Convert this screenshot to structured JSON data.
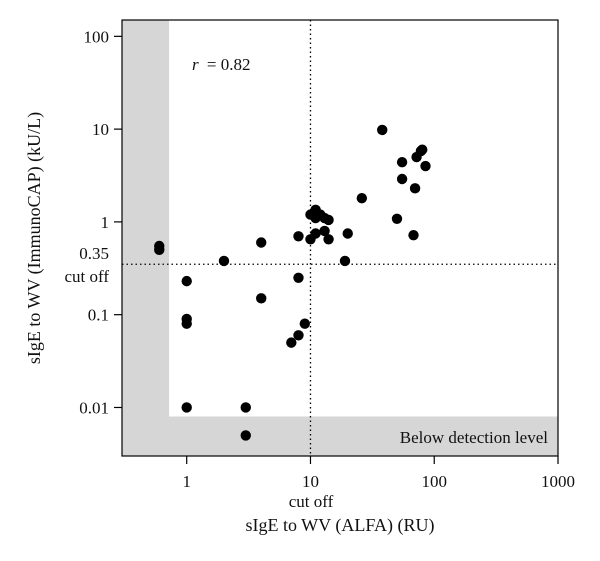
{
  "chart_data": {
    "type": "scatter",
    "xlabel": "sIgE to WV (ALFA) (RU)",
    "ylabel": "sIgE to WV (ImmunoCAP) (kU/L)",
    "x_scale": "log",
    "y_scale": "log",
    "xlim": [
      0.3,
      1000
    ],
    "ylim": [
      0.003,
      150
    ],
    "x_ticks": [
      {
        "value": 1,
        "label": "1"
      },
      {
        "value": 10,
        "label": "10"
      },
      {
        "value": 100,
        "label": "100"
      },
      {
        "value": 1000,
        "label": "1000"
      }
    ],
    "y_ticks": [
      {
        "value": 0.01,
        "label": "0.01"
      },
      {
        "value": 0.1,
        "label": "0.1"
      },
      {
        "value": 1,
        "label": "1"
      },
      {
        "value": 10,
        "label": "10"
      },
      {
        "value": 100,
        "label": "100"
      }
    ],
    "grid": false,
    "annotations": {
      "correlation": "r = 0.82",
      "correlation_symbol": "r",
      "correlation_value": "= 0.82",
      "below_detection": "Below detection level",
      "y_cutoff_value": "0.35",
      "y_cutoff_text": "cut off",
      "x_cutoff_text": "cut off"
    },
    "cutoffs": {
      "x": 10,
      "y": 0.35
    },
    "detection_limits": {
      "x": 0.72,
      "y": 0.008
    },
    "colors": {
      "points": "#000000",
      "shade": "#d6d6d6",
      "cutoff_line": "#000000"
    },
    "points": [
      {
        "x": 0.6,
        "y": 0.55
      },
      {
        "x": 0.6,
        "y": 0.5
      },
      {
        "x": 1,
        "y": 0.23
      },
      {
        "x": 1,
        "y": 0.09
      },
      {
        "x": 1,
        "y": 0.08
      },
      {
        "x": 1,
        "y": 0.01
      },
      {
        "x": 2,
        "y": 0.38
      },
      {
        "x": 3,
        "y": 0.01
      },
      {
        "x": 3,
        "y": 0.005
      },
      {
        "x": 4,
        "y": 0.6
      },
      {
        "x": 4,
        "y": 0.15
      },
      {
        "x": 7,
        "y": 0.05
      },
      {
        "x": 8,
        "y": 0.06
      },
      {
        "x": 8,
        "y": 0.25
      },
      {
        "x": 8,
        "y": 0.7
      },
      {
        "x": 9,
        "y": 0.08
      },
      {
        "x": 10,
        "y": 0.65
      },
      {
        "x": 10,
        "y": 1.2
      },
      {
        "x": 11,
        "y": 1.35
      },
      {
        "x": 11,
        "y": 1.1
      },
      {
        "x": 11,
        "y": 0.75
      },
      {
        "x": 12,
        "y": 1.2
      },
      {
        "x": 13,
        "y": 1.1
      },
      {
        "x": 13,
        "y": 0.8
      },
      {
        "x": 14,
        "y": 0.65
      },
      {
        "x": 14,
        "y": 1.05
      },
      {
        "x": 19,
        "y": 0.38
      },
      {
        "x": 20,
        "y": 0.75
      },
      {
        "x": 26,
        "y": 1.8
      },
      {
        "x": 38,
        "y": 9.8
      },
      {
        "x": 50,
        "y": 1.08
      },
      {
        "x": 55,
        "y": 4.4
      },
      {
        "x": 55,
        "y": 2.9
      },
      {
        "x": 68,
        "y": 0.72
      },
      {
        "x": 70,
        "y": 2.3
      },
      {
        "x": 72,
        "y": 5.0
      },
      {
        "x": 78,
        "y": 5.8
      },
      {
        "x": 80,
        "y": 6.0
      },
      {
        "x": 85,
        "y": 4.0
      }
    ]
  }
}
